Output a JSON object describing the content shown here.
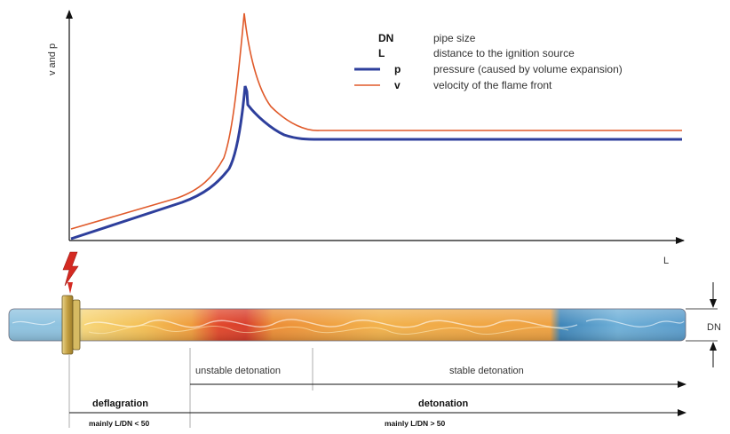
{
  "axes": {
    "y_label": "v and p",
    "x_label": "L"
  },
  "legend": [
    {
      "key": "DN",
      "desc": "pipe size",
      "color": ""
    },
    {
      "key": "L",
      "desc": "distance to the ignition source",
      "color": ""
    },
    {
      "key": "p",
      "desc": "pressure (caused by volume expansion)",
      "color": "#2e3f9c"
    },
    {
      "key": "v",
      "desc": "velocity of the flame front",
      "color": "#e05a2a"
    }
  ],
  "pipe": {
    "dn_label": "DN",
    "colors": {
      "pipe_blue": "#4a86b8",
      "flame_yellow": "#f2c05a",
      "flame_orange": "#e88a2c",
      "flame_red": "#d9402a",
      "flange": "#c8a84a"
    }
  },
  "icons": {
    "ignition": "lightning-bolt-icon"
  },
  "zones": {
    "unstable": "unstable detonation",
    "stable": "stable detonation",
    "deflagration": "deflagration",
    "detonation": "detonation",
    "deflagration_rule": "mainly L/DN < 50",
    "detonation_rule": "mainly L/DN > 50"
  }
}
